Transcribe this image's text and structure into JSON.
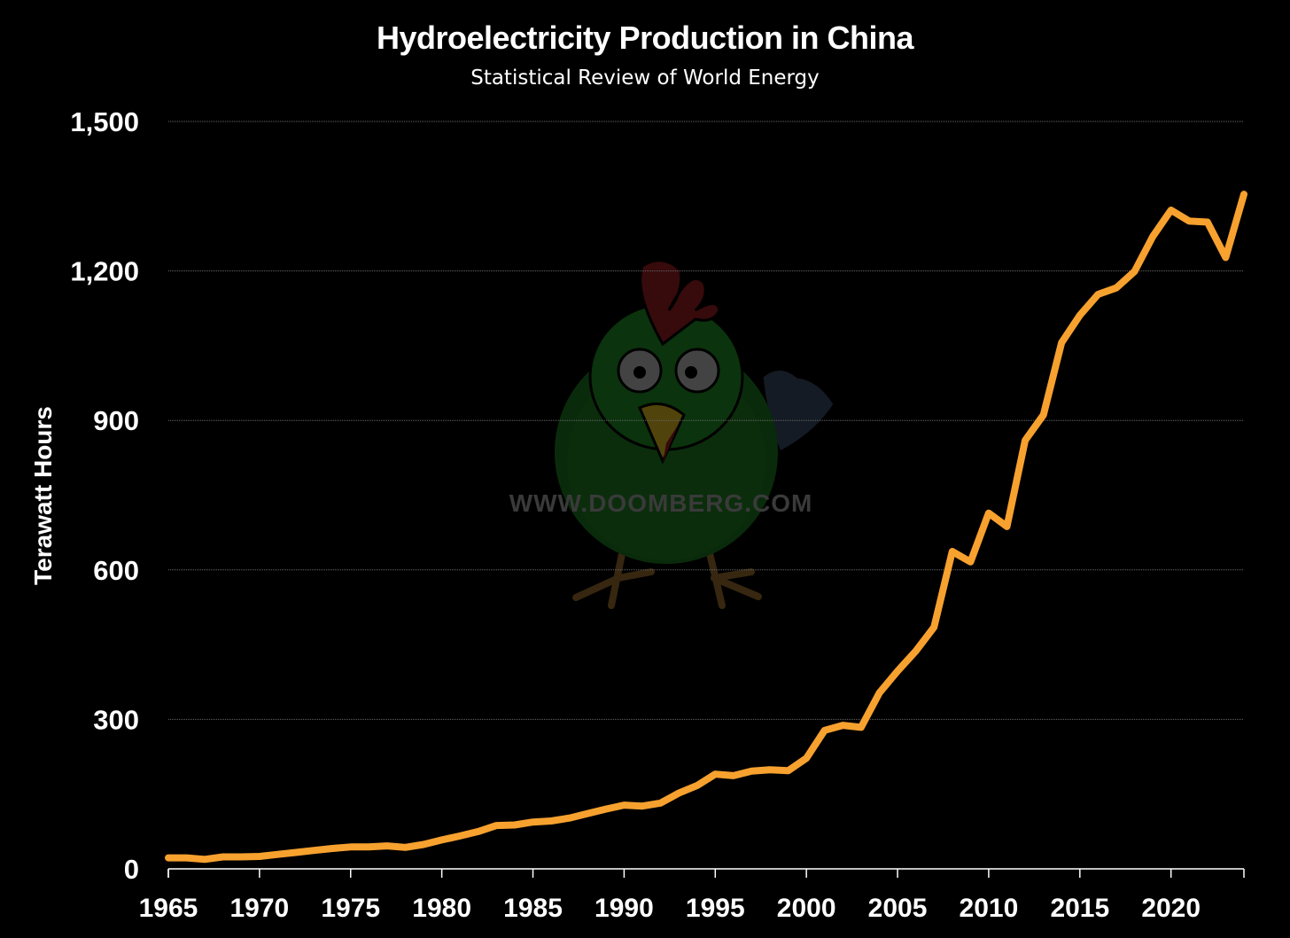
{
  "chart_data": {
    "type": "line",
    "title": "Hydroelectricity Production in China",
    "subtitle": "Statistical Review of World Energy",
    "ylabel": "Terawatt Hours",
    "xlabel": "",
    "ylim": [
      0,
      1500
    ],
    "xlim": [
      1965,
      2024
    ],
    "yticks": [
      0,
      300,
      600,
      900,
      1200,
      1500
    ],
    "ytick_labels": [
      "0",
      "300",
      "600",
      "900",
      "1,200",
      "1,500"
    ],
    "xticks": [
      1965,
      1970,
      1975,
      1980,
      1985,
      1990,
      1995,
      2000,
      2005,
      2010,
      2015,
      2020
    ],
    "grid": true,
    "line_color": "#F7A12F",
    "watermark": "WWW.DOOMBERG.COM",
    "x": [
      1965,
      1966,
      1967,
      1968,
      1969,
      1970,
      1971,
      1972,
      1973,
      1974,
      1975,
      1976,
      1977,
      1978,
      1979,
      1980,
      1981,
      1982,
      1983,
      1984,
      1985,
      1986,
      1987,
      1988,
      1989,
      1990,
      1991,
      1992,
      1993,
      1994,
      1995,
      1996,
      1997,
      1998,
      1999,
      2000,
      2001,
      2002,
      2003,
      2004,
      2005,
      2006,
      2007,
      2008,
      2009,
      2010,
      2011,
      2012,
      2013,
      2014,
      2015,
      2016,
      2017,
      2018,
      2019,
      2020,
      2021,
      2022,
      2023,
      2024
    ],
    "series": [
      {
        "values": [
          22,
          22,
          19,
          24,
          24,
          25,
          29,
          33,
          37,
          41,
          44,
          44,
          46,
          43,
          49,
          58,
          66,
          75,
          87,
          88,
          94,
          96,
          102,
          111,
          120,
          128,
          126,
          132,
          152,
          167,
          190,
          187,
          196,
          199,
          197,
          222,
          278,
          288,
          284,
          353,
          397,
          437,
          485,
          637,
          616,
          714,
          687,
          860,
          911,
          1056,
          1111,
          1153,
          1166,
          1199,
          1269,
          1322,
          1300,
          1298,
          1227,
          1354
        ]
      }
    ]
  }
}
